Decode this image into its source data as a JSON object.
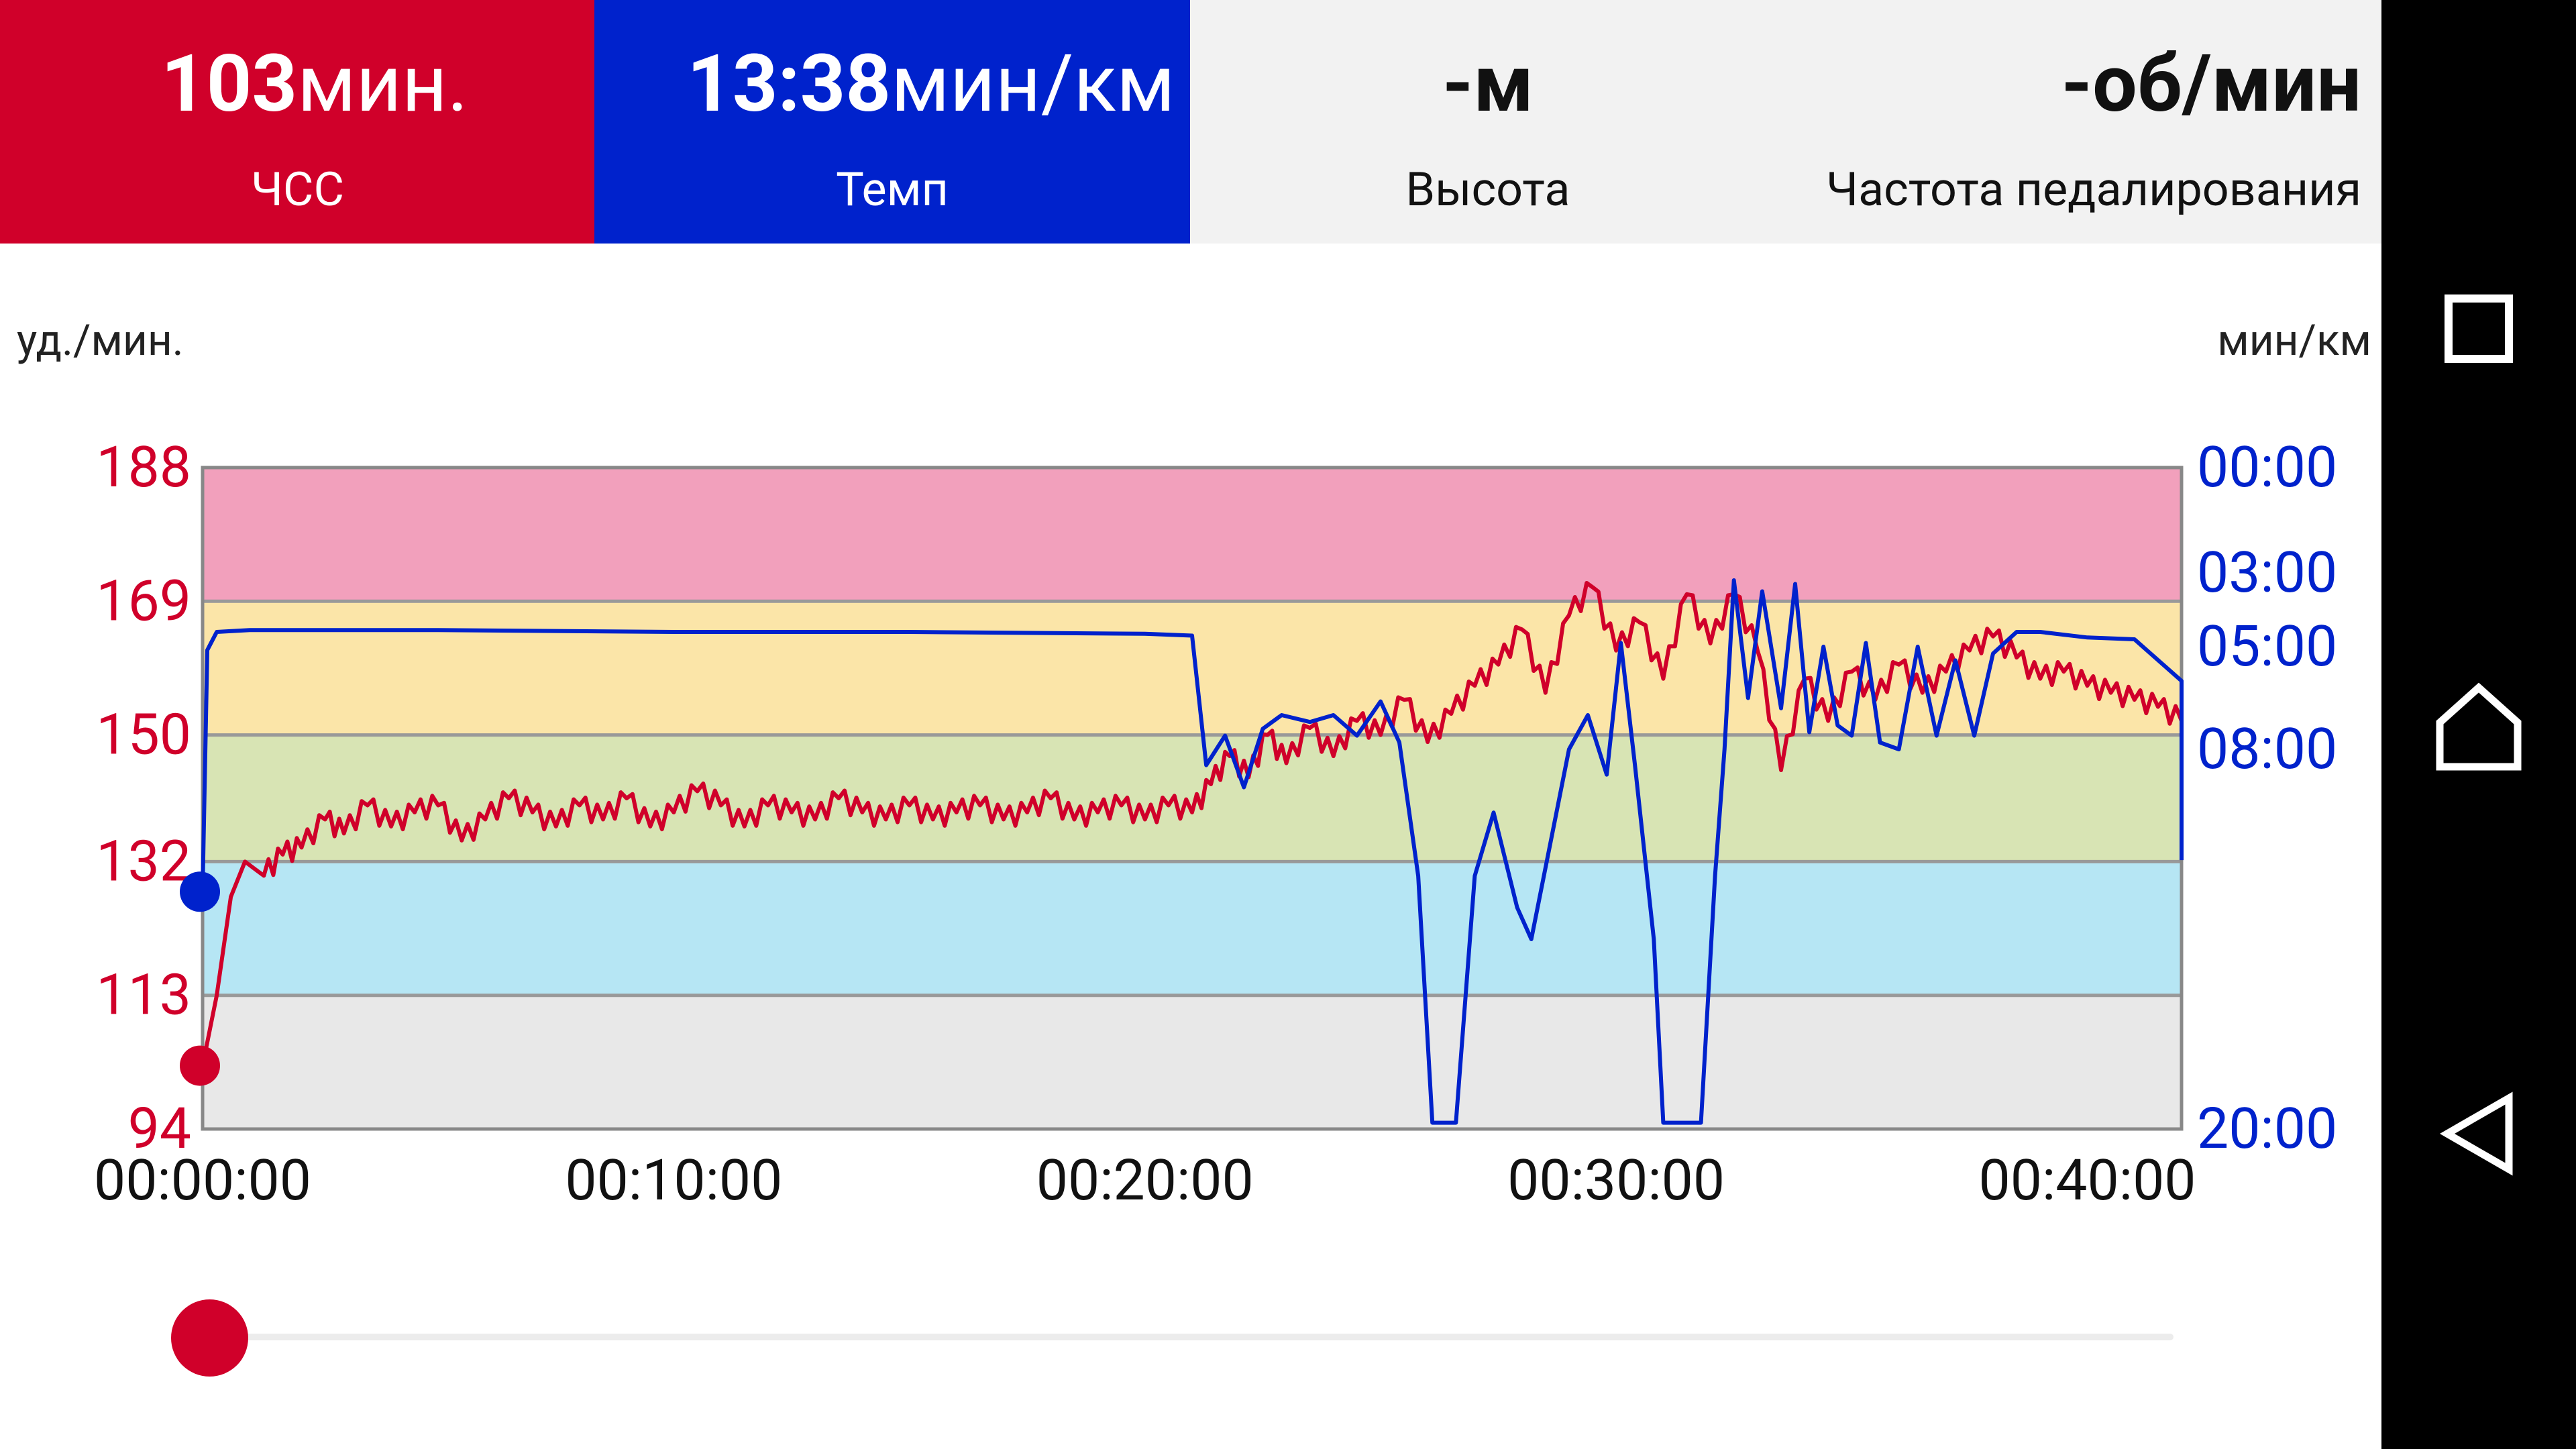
{
  "tiles": {
    "hr": {
      "value": "103",
      "unit": "мин.",
      "label": "ЧСС"
    },
    "pace": {
      "value": "13:38",
      "unit": "мин/км",
      "label": "Темп"
    },
    "altitude": {
      "value": "-",
      "unit": "м",
      "label": "Высота"
    },
    "cadence": {
      "value": "-",
      "unit": "об/мин",
      "label": "Частота педалирования"
    }
  },
  "axis_units": {
    "left": "уд./мин.",
    "right": "мин/км"
  },
  "colors": {
    "hr": "#d0002a",
    "pace": "#0022cc"
  },
  "chart_data": {
    "type": "line",
    "x_range_minutes": [
      0,
      42
    ],
    "x_ticks": [
      "00:00:00",
      "00:10:00",
      "00:20:00",
      "00:30:00",
      "00:40:00"
    ],
    "left_axis": {
      "label": "уд./мин.",
      "ticks": [
        "188",
        "169",
        "150",
        "132",
        "113",
        "94"
      ],
      "range": [
        94,
        188
      ]
    },
    "right_axis": {
      "label": "мин/км",
      "ticks": [
        "00:00",
        "03:00",
        "05:00",
        "08:00",
        "20:00"
      ],
      "range_minutes": [
        0,
        20
      ]
    },
    "zones": [
      {
        "from": 169,
        "to": 188,
        "color": "#f2a0bc"
      },
      {
        "from": 150,
        "to": 169,
        "color": "#fbe5a8"
      },
      {
        "from": 132,
        "to": 150,
        "color": "#d8e4b4"
      },
      {
        "from": 113,
        "to": 132,
        "color": "#b6e6f4"
      },
      {
        "from": 94,
        "to": 113,
        "color": "#e8e8e8"
      }
    ],
    "series": [
      {
        "name": "ЧСС",
        "points": [
          [
            0,
            103
          ],
          [
            0.3,
            113
          ],
          [
            0.6,
            127
          ],
          [
            0.9,
            132
          ],
          [
            1.3,
            130
          ],
          [
            1.7,
            133
          ],
          [
            2.1,
            134
          ],
          [
            2.6,
            138
          ],
          [
            3.0,
            136
          ],
          [
            3.5,
            140
          ],
          [
            4.0,
            137
          ],
          [
            4.5,
            139
          ],
          [
            5.0,
            140
          ],
          [
            5.5,
            135
          ],
          [
            6.0,
            138
          ],
          [
            6.5,
            141
          ],
          [
            7.0,
            139
          ],
          [
            7.5,
            137
          ],
          [
            8.0,
            140
          ],
          [
            8.5,
            138
          ],
          [
            9.0,
            141
          ],
          [
            9.5,
            137
          ],
          [
            10.0,
            139
          ],
          [
            10.5,
            142
          ],
          [
            11.0,
            140
          ],
          [
            11.5,
            137
          ],
          [
            12.0,
            140
          ],
          [
            12.5,
            139
          ],
          [
            13.0,
            138
          ],
          [
            13.5,
            141
          ],
          [
            14.0,
            139
          ],
          [
            14.5,
            138
          ],
          [
            15.0,
            140
          ],
          [
            15.5,
            138
          ],
          [
            16.0,
            139
          ],
          [
            16.5,
            140
          ],
          [
            17.0,
            138
          ],
          [
            17.5,
            139
          ],
          [
            18.0,
            141
          ],
          [
            18.5,
            138
          ],
          [
            19.0,
            139
          ],
          [
            19.5,
            140
          ],
          [
            20.0,
            138
          ],
          [
            20.5,
            140
          ],
          [
            21.0,
            139
          ],
          [
            21.4,
            143
          ],
          [
            21.8,
            147
          ],
          [
            22.2,
            144
          ],
          [
            22.6,
            150
          ],
          [
            23.0,
            146
          ],
          [
            23.5,
            151
          ],
          [
            24.0,
            147
          ],
          [
            24.5,
            152
          ],
          [
            25.0,
            150
          ],
          [
            25.5,
            155
          ],
          [
            26.0,
            149
          ],
          [
            26.5,
            153
          ],
          [
            27.0,
            157
          ],
          [
            27.5,
            160
          ],
          [
            28.0,
            165
          ],
          [
            28.5,
            156
          ],
          [
            29.0,
            167
          ],
          [
            29.5,
            171
          ],
          [
            30.0,
            162
          ],
          [
            30.5,
            166
          ],
          [
            31.0,
            158
          ],
          [
            31.5,
            170
          ],
          [
            32.0,
            163
          ],
          [
            32.5,
            170
          ],
          [
            33.0,
            162
          ],
          [
            33.5,
            145
          ],
          [
            34.0,
            158
          ],
          [
            34.5,
            152
          ],
          [
            35.0,
            159
          ],
          [
            35.5,
            155
          ],
          [
            36.0,
            160
          ],
          [
            36.5,
            156
          ],
          [
            37.0,
            159
          ],
          [
            37.5,
            162
          ],
          [
            38.0,
            164
          ],
          [
            38.5,
            161
          ],
          [
            39.0,
            158
          ],
          [
            39.5,
            159
          ],
          [
            40.0,
            157
          ],
          [
            40.5,
            156
          ],
          [
            41.0,
            155
          ],
          [
            41.5,
            154
          ],
          [
            42.0,
            152
          ]
        ]
      },
      {
        "name": "Темп",
        "points_pace_minutes": [
          [
            0,
            12.5
          ],
          [
            0.1,
            5.1
          ],
          [
            0.3,
            4.6
          ],
          [
            1,
            4.55
          ],
          [
            5,
            4.55
          ],
          [
            10,
            4.6
          ],
          [
            15,
            4.6
          ],
          [
            20,
            4.65
          ],
          [
            21,
            4.7
          ],
          [
            21.3,
            8.5
          ],
          [
            21.7,
            7.6
          ],
          [
            22.1,
            9.2
          ],
          [
            22.5,
            7.4
          ],
          [
            22.9,
            7.0
          ],
          [
            23.5,
            7.2
          ],
          [
            24,
            7.0
          ],
          [
            24.5,
            7.6
          ],
          [
            25,
            6.6
          ],
          [
            25.4,
            7.8
          ],
          [
            25.8,
            12
          ],
          [
            26.1,
            19.8
          ],
          [
            26.6,
            19.8
          ],
          [
            27,
            12
          ],
          [
            27.4,
            10
          ],
          [
            27.9,
            13
          ],
          [
            28.2,
            14
          ],
          [
            28.6,
            11
          ],
          [
            29,
            8.0
          ],
          [
            29.4,
            7.0
          ],
          [
            29.8,
            8.8
          ],
          [
            30.1,
            4.9
          ],
          [
            30.4,
            8.5
          ],
          [
            30.8,
            14
          ],
          [
            31.0,
            19.8
          ],
          [
            31.8,
            19.8
          ],
          [
            32.1,
            12
          ],
          [
            32.3,
            8
          ],
          [
            32.5,
            3.2
          ],
          [
            32.8,
            6.5
          ],
          [
            33.1,
            3.5
          ],
          [
            33.5,
            6.8
          ],
          [
            33.8,
            3.3
          ],
          [
            34.1,
            7.5
          ],
          [
            34.4,
            5.0
          ],
          [
            34.7,
            7.3
          ],
          [
            35.0,
            7.6
          ],
          [
            35.3,
            4.9
          ],
          [
            35.6,
            7.8
          ],
          [
            36.0,
            8.0
          ],
          [
            36.4,
            5.0
          ],
          [
            36.8,
            7.6
          ],
          [
            37.2,
            5.4
          ],
          [
            37.6,
            7.6
          ],
          [
            38.0,
            5.2
          ],
          [
            38.5,
            4.6
          ],
          [
            39,
            4.6
          ],
          [
            40,
            4.75
          ],
          [
            41,
            4.8
          ],
          [
            42,
            6
          ],
          [
            42,
            11.5
          ]
        ]
      }
    ]
  }
}
